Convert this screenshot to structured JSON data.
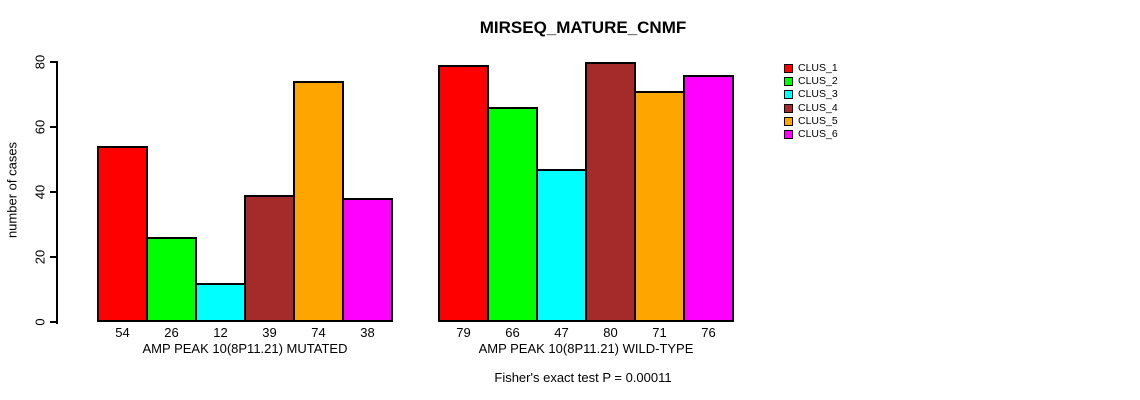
{
  "chart_data": {
    "type": "bar",
    "title": "MIRSEQ_MATURE_CNMF",
    "ylabel": "number of cases",
    "ylim": [
      0,
      80
    ],
    "yticks": [
      0,
      20,
      40,
      60,
      80
    ],
    "grid": false,
    "legend_position": "top-right",
    "legend": [
      "CLUS_1",
      "CLUS_2",
      "CLUS_3",
      "CLUS_4",
      "CLUS_5",
      "CLUS_6"
    ],
    "colors": [
      "#ff0000",
      "#00ff00",
      "#00ffff",
      "#a52a2a",
      "#ffa500",
      "#ff00ff"
    ],
    "groups": [
      {
        "label": "AMP PEAK 10(8P11.21) MUTATED",
        "values": [
          54,
          26,
          12,
          39,
          74,
          38
        ]
      },
      {
        "label": "AMP PEAK 10(8P11.21) WILD-TYPE",
        "values": [
          79,
          66,
          47,
          80,
          71,
          76
        ]
      }
    ],
    "footnote": "Fisher's exact test P = 0.00011"
  }
}
